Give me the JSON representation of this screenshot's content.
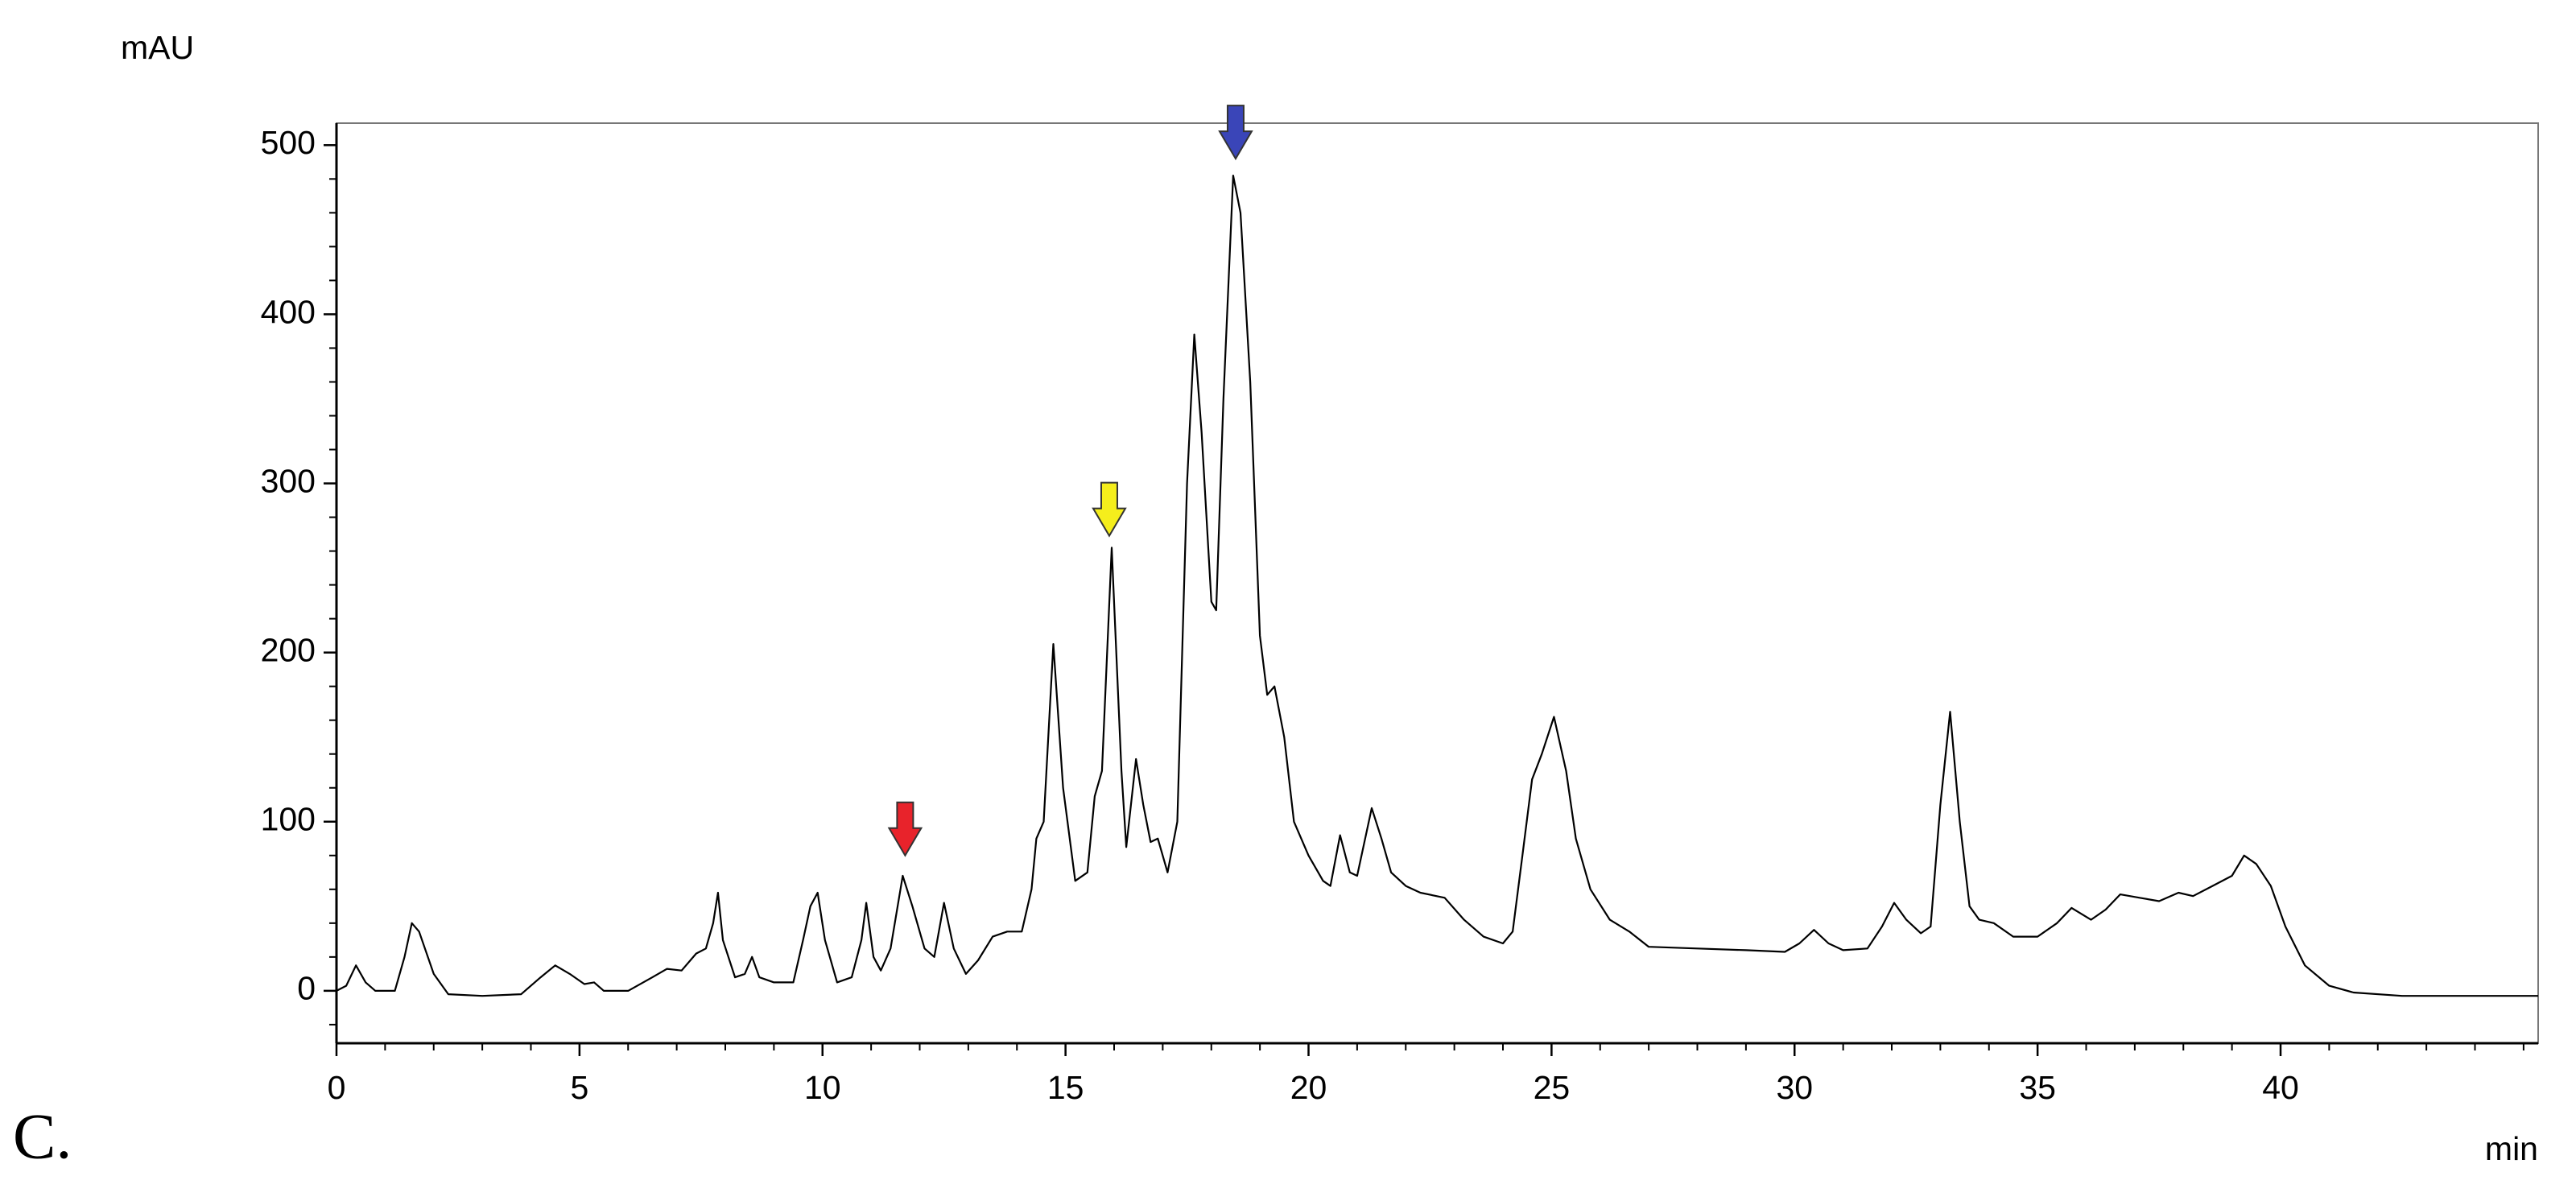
{
  "chart_data": {
    "type": "line",
    "panel_label": "C.",
    "ylabel": "mAU",
    "xlabel": "min",
    "xlim": [
      0,
      45.3
    ],
    "ylim": [
      -31,
      513
    ],
    "xticks": [
      0,
      5,
      10,
      15,
      20,
      25,
      30,
      35,
      40
    ],
    "yticks": [
      0,
      100,
      200,
      300,
      400,
      500
    ],
    "xminorticks": [
      1,
      2,
      3,
      4,
      6,
      7,
      8,
      9,
      11,
      12,
      13,
      14,
      16,
      17,
      18,
      19,
      21,
      22,
      23,
      24,
      26,
      27,
      28,
      29,
      31,
      32,
      33,
      34,
      36,
      37,
      38,
      39,
      41,
      42,
      43,
      44,
      45
    ],
    "yminorticks": [
      -20,
      20,
      40,
      60,
      80,
      120,
      140,
      160,
      180,
      220,
      240,
      260,
      280,
      320,
      340,
      360,
      380,
      420,
      440,
      460,
      480
    ],
    "series": [
      {
        "color": "#000000",
        "x": [
          0,
          0.2,
          0.4,
          0.6,
          0.8,
          1.2,
          1.4,
          1.55,
          1.7,
          2.0,
          2.3,
          3.0,
          3.8,
          4.2,
          4.5,
          4.8,
          5.1,
          5.3,
          5.5,
          6.0,
          6.5,
          6.8,
          7.1,
          7.4,
          7.6,
          7.75,
          7.85,
          7.95,
          8.2,
          8.4,
          8.55,
          8.7,
          9.0,
          9.4,
          9.6,
          9.75,
          9.9,
          10.05,
          10.3,
          10.6,
          10.8,
          10.9,
          11.05,
          11.2,
          11.4,
          11.65,
          11.85,
          12.1,
          12.3,
          12.5,
          12.7,
          12.95,
          13.2,
          13.5,
          13.8,
          14.1,
          14.3,
          14.4,
          14.55,
          14.75,
          14.95,
          15.2,
          15.45,
          15.6,
          15.75,
          15.95,
          16.15,
          16.25,
          16.45,
          16.6,
          16.75,
          16.9,
          17.1,
          17.3,
          17.5,
          17.65,
          17.8,
          18.0,
          18.1,
          18.25,
          18.45,
          18.6,
          18.8,
          19.0,
          19.15,
          19.3,
          19.5,
          19.7,
          20.0,
          20.3,
          20.45,
          20.65,
          20.85,
          21.0,
          21.3,
          21.5,
          21.7,
          22.0,
          22.3,
          22.8,
          23.2,
          23.6,
          24.0,
          24.2,
          24.4,
          24.6,
          24.8,
          25.05,
          25.3,
          25.5,
          25.8,
          26.2,
          26.6,
          27.0,
          28,
          29,
          29.8,
          30.1,
          30.4,
          30.7,
          31,
          31.5,
          31.8,
          32.05,
          32.3,
          32.6,
          32.8,
          33.0,
          33.2,
          33.4,
          33.6,
          33.8,
          34.1,
          34.5,
          35.0,
          35.4,
          35.7,
          36.1,
          36.4,
          36.7,
          37.1,
          37.5,
          37.9,
          38.2,
          38.6,
          39.0,
          39.25,
          39.5,
          39.8,
          40.1,
          40.5,
          41.0,
          41.5,
          42.5,
          45.3
        ],
        "values": [
          0,
          3,
          15,
          5,
          0,
          0,
          20,
          40,
          35,
          10,
          -2,
          -3,
          -2,
          8,
          15,
          10,
          4,
          5,
          0,
          0,
          8,
          13,
          12,
          22,
          25,
          40,
          58,
          30,
          8,
          10,
          20,
          8,
          5,
          5,
          30,
          50,
          58,
          30,
          5,
          8,
          30,
          52,
          20,
          12,
          25,
          68,
          50,
          25,
          20,
          52,
          25,
          10,
          18,
          32,
          35,
          35,
          60,
          90,
          100,
          205,
          120,
          65,
          70,
          115,
          130,
          262,
          130,
          85,
          137,
          110,
          88,
          90,
          70,
          100,
          300,
          388,
          330,
          230,
          225,
          350,
          482,
          460,
          360,
          210,
          175,
          180,
          150,
          100,
          80,
          65,
          62,
          92,
          70,
          68,
          108,
          90,
          70,
          62,
          58,
          55,
          42,
          32,
          28,
          35,
          80,
          125,
          140,
          162,
          130,
          90,
          60,
          42,
          35,
          26,
          25,
          24,
          23,
          28,
          36,
          28,
          24,
          25,
          38,
          52,
          42,
          34,
          38,
          110,
          165,
          100,
          50,
          42,
          40,
          32,
          32,
          40,
          49,
          42,
          48,
          57,
          55,
          53,
          58,
          56,
          62,
          68,
          80,
          75,
          62,
          38,
          15,
          3,
          -1,
          -3,
          -3
        ]
      }
    ],
    "arrows": [
      {
        "x": 11.7,
        "y": 80,
        "color": "#e8232b"
      },
      {
        "x": 15.9,
        "y": 269,
        "color": "#f5ee1c"
      },
      {
        "x": 18.5,
        "y": 492,
        "color": "#3a45b8"
      }
    ]
  }
}
